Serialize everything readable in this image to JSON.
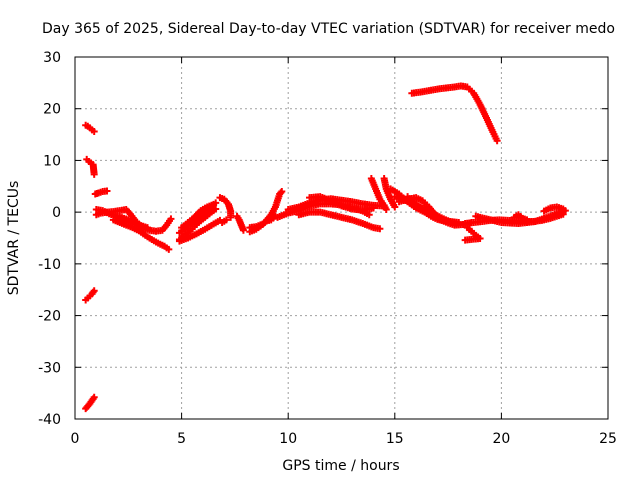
{
  "chart_data": {
    "type": "scatter",
    "title": "Day 365 of 2025, Sidereal Day-to-day VTEC variation (SDTVAR) for receiver medo",
    "xlabel": "GPS time / hours",
    "ylabel": "SDTVAR / TECUs",
    "xlim": [
      0,
      25
    ],
    "ylim": [
      -40,
      30
    ],
    "xticks": [
      "0",
      "5",
      "10",
      "15",
      "20",
      "25"
    ],
    "yticks": [
      "-40",
      "-30",
      "-20",
      "-10",
      "0",
      "10",
      "20",
      "30"
    ],
    "grid": true,
    "marker": "plus",
    "series": [
      {
        "name": "SDTVAR",
        "color": "#ff0000",
        "tracks": [
          [
            [
              0.5,
              16.8
            ],
            [
              0.6,
              16.6
            ],
            [
              0.7,
              16.3
            ],
            [
              0.8,
              15.9
            ],
            [
              0.9,
              15.6
            ]
          ],
          [
            [
              0.55,
              10.2
            ],
            [
              0.65,
              9.8
            ],
            [
              0.75,
              9.5
            ],
            [
              0.85,
              9.2
            ],
            [
              0.9,
              7.3
            ]
          ],
          [
            [
              0.5,
              -17.0
            ],
            [
              0.6,
              -16.6
            ],
            [
              0.7,
              -16.2
            ],
            [
              0.8,
              -15.8
            ],
            [
              0.9,
              -15.2
            ]
          ],
          [
            [
              0.5,
              -38.0
            ],
            [
              0.6,
              -37.5
            ],
            [
              0.7,
              -37.0
            ],
            [
              0.8,
              -36.4
            ],
            [
              0.9,
              -35.8
            ]
          ],
          [
            [
              0.95,
              3.5
            ],
            [
              1.1,
              3.7
            ],
            [
              1.3,
              4.0
            ],
            [
              1.5,
              4.1
            ]
          ],
          [
            [
              1.0,
              -0.5
            ],
            [
              1.2,
              -0.2
            ],
            [
              1.5,
              0.0
            ],
            [
              1.8,
              0.1
            ],
            [
              2.1,
              0.3
            ],
            [
              2.4,
              0.5
            ],
            [
              2.6,
              -0.4
            ],
            [
              2.8,
              -1.5
            ],
            [
              3.0,
              -2.3
            ],
            [
              3.2,
              -3.0
            ],
            [
              3.5,
              -3.5
            ],
            [
              3.8,
              -3.7
            ],
            [
              4.1,
              -3.5
            ],
            [
              4.3,
              -2.5
            ],
            [
              4.5,
              -1.3
            ]
          ],
          [
            [
              1.0,
              0.5
            ],
            [
              1.3,
              0.3
            ],
            [
              1.6,
              -0.3
            ],
            [
              1.9,
              -0.8
            ],
            [
              2.2,
              -1.3
            ],
            [
              2.5,
              -1.8
            ],
            [
              2.8,
              -2.2
            ],
            [
              3.1,
              -2.6
            ],
            [
              3.4,
              -3.0
            ]
          ],
          [
            [
              1.8,
              -1.5
            ],
            [
              2.1,
              -2.0
            ],
            [
              2.4,
              -2.5
            ],
            [
              2.7,
              -3.0
            ],
            [
              3.0,
              -3.6
            ],
            [
              3.3,
              -4.5
            ],
            [
              3.6,
              -5.3
            ],
            [
              3.9,
              -6.0
            ],
            [
              4.2,
              -6.6
            ],
            [
              4.4,
              -7.2
            ]
          ],
          [
            [
              2.0,
              -0.8
            ],
            [
              2.3,
              -1.2
            ],
            [
              2.6,
              -1.6
            ],
            [
              2.9,
              -2.3
            ],
            [
              3.2,
              -3.2
            ]
          ],
          [
            [
              4.9,
              -5.3
            ],
            [
              5.2,
              -4.3
            ],
            [
              5.5,
              -3.2
            ],
            [
              5.8,
              -2.0
            ],
            [
              6.1,
              -1.0
            ],
            [
              6.4,
              0.0
            ],
            [
              6.6,
              0.6
            ]
          ],
          [
            [
              4.9,
              -4.0
            ],
            [
              5.2,
              -3.0
            ],
            [
              5.5,
              -2.0
            ],
            [
              5.8,
              -1.0
            ],
            [
              6.1,
              0.0
            ],
            [
              6.4,
              1.0
            ],
            [
              6.6,
              1.8
            ]
          ],
          [
            [
              5.0,
              -3.0
            ],
            [
              5.3,
              -2.0
            ],
            [
              5.6,
              -1.0
            ],
            [
              5.9,
              0.3
            ],
            [
              6.2,
              1.0
            ],
            [
              6.5,
              1.5
            ]
          ],
          [
            [
              4.9,
              -5.6
            ],
            [
              5.3,
              -5.0
            ],
            [
              5.7,
              -4.2
            ],
            [
              6.1,
              -3.3
            ],
            [
              6.5,
              -2.3
            ],
            [
              6.8,
              -1.6
            ]
          ],
          [
            [
              6.8,
              2.8
            ],
            [
              7.0,
              2.5
            ],
            [
              7.2,
              1.5
            ],
            [
              7.3,
              0.2
            ],
            [
              7.3,
              -1.0
            ]
          ],
          [
            [
              6.9,
              -2.0
            ],
            [
              7.1,
              -1.5
            ]
          ],
          [
            [
              7.6,
              -0.8
            ],
            [
              7.7,
              -1.5
            ],
            [
              7.8,
              -2.5
            ],
            [
              7.9,
              -3.5
            ]
          ],
          [
            [
              8.2,
              -3.8
            ],
            [
              8.5,
              -3.3
            ],
            [
              8.8,
              -2.4
            ],
            [
              9.0,
              -1.5
            ],
            [
              9.2,
              -0.5
            ],
            [
              9.4,
              1.0
            ],
            [
              9.6,
              3.5
            ],
            [
              9.7,
              4.0
            ]
          ],
          [
            [
              8.2,
              -3.0
            ],
            [
              8.5,
              -2.8
            ],
            [
              8.8,
              -2.3
            ],
            [
              9.0,
              -1.7
            ],
            [
              9.2,
              -1.5
            ],
            [
              9.4,
              -0.8
            ]
          ],
          [
            [
              9.5,
              -1.0
            ],
            [
              9.8,
              -0.5
            ],
            [
              10.0,
              -0.2
            ],
            [
              10.3,
              0.1
            ],
            [
              10.6,
              0.6
            ],
            [
              11.0,
              1.2
            ],
            [
              11.5,
              1.6
            ],
            [
              12.0,
              1.6
            ],
            [
              12.5,
              1.4
            ],
            [
              13.0,
              0.9
            ],
            [
              13.5,
              0.2
            ],
            [
              13.8,
              -0.5
            ]
          ],
          [
            [
              10.0,
              0.5
            ],
            [
              10.5,
              1.0
            ],
            [
              11.0,
              1.8
            ],
            [
              11.5,
              2.3
            ],
            [
              12.0,
              2.6
            ],
            [
              12.5,
              2.3
            ],
            [
              13.0,
              2.0
            ],
            [
              13.5,
              1.6
            ],
            [
              14.0,
              1.3
            ],
            [
              14.5,
              1.2
            ]
          ],
          [
            [
              10.5,
              -0.5
            ],
            [
              11.0,
              0.0
            ],
            [
              11.5,
              0.0
            ],
            [
              12.0,
              -0.5
            ],
            [
              12.5,
              -1.0
            ],
            [
              13.0,
              -1.5
            ],
            [
              13.5,
              -2.2
            ],
            [
              14.0,
              -3.0
            ],
            [
              14.3,
              -3.2
            ]
          ],
          [
            [
              11.0,
              2.8
            ],
            [
              11.5,
              3.0
            ],
            [
              12.0,
              2.2
            ],
            [
              12.5,
              1.2
            ],
            [
              13.0,
              0.6
            ],
            [
              13.5,
              0.4
            ],
            [
              14.0,
              0.8
            ]
          ],
          [
            [
              13.9,
              6.5
            ],
            [
              14.1,
              4.5
            ],
            [
              14.3,
              2.5
            ],
            [
              14.5,
              1.3
            ],
            [
              14.6,
              0.5
            ]
          ],
          [
            [
              14.5,
              6.5
            ],
            [
              14.6,
              4.5
            ],
            [
              14.8,
              2.5
            ],
            [
              15.0,
              1.0
            ]
          ],
          [
            [
              14.8,
              4.5
            ],
            [
              15.2,
              3.5
            ],
            [
              15.6,
              2.0
            ],
            [
              16.0,
              0.8
            ],
            [
              16.4,
              0.0
            ],
            [
              16.7,
              -0.8
            ],
            [
              17.0,
              -1.4
            ],
            [
              17.3,
              -1.7
            ]
          ],
          [
            [
              15.0,
              3.0
            ],
            [
              15.4,
              2.4
            ],
            [
              15.8,
              1.8
            ],
            [
              16.2,
              1.0
            ],
            [
              16.6,
              0.2
            ],
            [
              17.0,
              -0.7
            ],
            [
              17.4,
              -1.5
            ],
            [
              17.7,
              -2.0
            ],
            [
              18.0,
              -2.3
            ]
          ],
          [
            [
              15.2,
              2.0
            ],
            [
              15.6,
              2.5
            ],
            [
              16.0,
              2.8
            ],
            [
              16.3,
              2.2
            ],
            [
              16.6,
              1.0
            ],
            [
              16.9,
              -0.5
            ],
            [
              17.2,
              -1.6
            ],
            [
              17.5,
              -2.1
            ],
            [
              17.8,
              -2.5
            ],
            [
              18.2,
              -2.4
            ],
            [
              18.6,
              -2.0
            ]
          ],
          [
            [
              15.6,
              3.0
            ],
            [
              16.0,
              1.5
            ],
            [
              16.4,
              0.2
            ],
            [
              16.8,
              -0.8
            ],
            [
              17.2,
              -1.5
            ],
            [
              17.6,
              -1.8
            ],
            [
              18.0,
              -2.0
            ]
          ],
          [
            [
              15.8,
              23.0
            ],
            [
              16.2,
              23.2
            ],
            [
              16.6,
              23.5
            ],
            [
              17.0,
              23.8
            ],
            [
              17.4,
              24.0
            ],
            [
              17.8,
              24.2
            ],
            [
              18.1,
              24.4
            ],
            [
              18.4,
              24.2
            ],
            [
              18.7,
              23.0
            ],
            [
              19.0,
              20.8
            ],
            [
              19.3,
              18.2
            ],
            [
              19.6,
              15.5
            ],
            [
              19.8,
              13.8
            ]
          ],
          [
            [
              18.4,
              -3.0
            ],
            [
              18.6,
              -3.7
            ],
            [
              18.8,
              -4.5
            ],
            [
              19.0,
              -5.1
            ],
            [
              18.3,
              -5.4
            ]
          ],
          [
            [
              18.3,
              -2.2
            ],
            [
              18.7,
              -2.0
            ],
            [
              19.1,
              -1.8
            ],
            [
              19.5,
              -1.6
            ],
            [
              19.9,
              -1.5
            ],
            [
              20.3,
              -1.6
            ],
            [
              20.7,
              -1.7
            ],
            [
              21.1,
              -1.8
            ],
            [
              21.5,
              -1.8
            ],
            [
              21.9,
              -1.6
            ],
            [
              22.3,
              -1.2
            ],
            [
              22.6,
              -0.8
            ],
            [
              22.9,
              -0.4
            ]
          ],
          [
            [
              18.8,
              -0.8
            ],
            [
              19.2,
              -1.2
            ],
            [
              19.6,
              -1.6
            ],
            [
              20.0,
              -2.0
            ],
            [
              20.4,
              -2.1
            ],
            [
              20.8,
              -2.2
            ],
            [
              21.2,
              -2.0
            ],
            [
              21.6,
              -1.8
            ],
            [
              22.0,
              -1.2
            ],
            [
              22.4,
              -0.6
            ],
            [
              22.8,
              0.0
            ],
            [
              23.0,
              0.3
            ]
          ],
          [
            [
              20.6,
              -1.0
            ],
            [
              20.8,
              -0.5
            ],
            [
              21.0,
              -1.2
            ],
            [
              21.2,
              -1.5
            ]
          ],
          [
            [
              22.0,
              0.2
            ],
            [
              22.3,
              0.8
            ],
            [
              22.6,
              1.0
            ],
            [
              22.9,
              0.6
            ]
          ]
        ]
      }
    ]
  }
}
